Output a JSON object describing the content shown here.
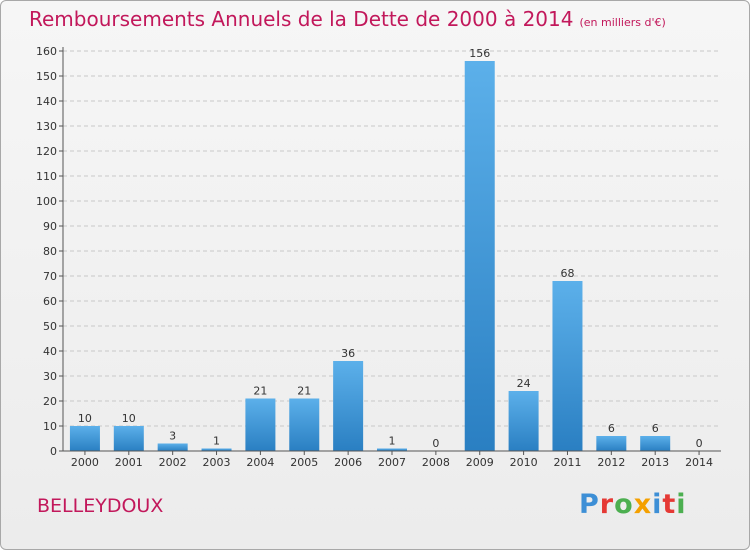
{
  "title": "Remboursements Annuels de la Dette de 2000 à 2014",
  "unit_note": "(en milliers d'€)",
  "commune": "BELLEYDOUX",
  "logo": {
    "text": "Proxiti",
    "letter_colors": [
      "#3d8fd6",
      "#e53935",
      "#4caf50",
      "#f4a000",
      "#3d8fd6",
      "#e53935",
      "#4caf50"
    ]
  },
  "colors": {
    "bar_light": "#5cb0ea",
    "bar_dark": "#2a7fc2",
    "title": "#c2185b",
    "grid": "#c8c8c8"
  },
  "chart_data": {
    "type": "bar",
    "title": "Remboursements Annuels de la Dette de 2000 à 2014",
    "categories": [
      "2000",
      "2001",
      "2002",
      "2003",
      "2004",
      "2005",
      "2006",
      "2007",
      "2008",
      "2009",
      "2010",
      "2011",
      "2012",
      "2013",
      "2014"
    ],
    "values": [
      10,
      10,
      3,
      1,
      21,
      21,
      36,
      1,
      0,
      156,
      24,
      68,
      6,
      6,
      0
    ],
    "ylim": [
      0,
      160
    ],
    "yticks": [
      0,
      10,
      20,
      30,
      40,
      50,
      60,
      70,
      80,
      90,
      100,
      110,
      120,
      130,
      140,
      150,
      160
    ],
    "grid": true
  }
}
